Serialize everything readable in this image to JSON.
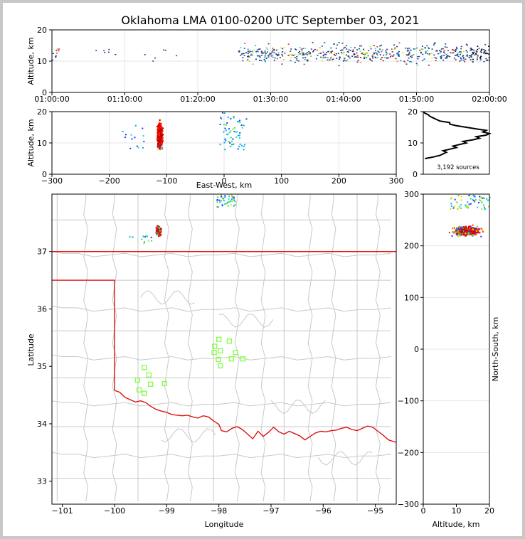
{
  "title": "Oklahoma LMA 0100-0200 UTC September 03, 2021",
  "colors": {
    "state_border": "#e01010",
    "county_lines": "#c8c8c8",
    "stations": "#80ff40",
    "altitude_profile": "#000000"
  },
  "chart_data": [
    {
      "name": "time-altitude",
      "type": "scatter",
      "ylabel": "Altitude, km",
      "ylim": [
        0,
        20
      ],
      "yticks": [
        "0",
        "10",
        "20"
      ],
      "xlim_minutes": [
        0,
        60
      ],
      "xticks": [
        "01:00:00",
        "01:10:00",
        "01:20:00",
        "01:30:00",
        "01:40:00",
        "01:50:00",
        "02:00:00"
      ],
      "source_clusters": [
        {
          "t_range": [
            0,
            1
          ],
          "alt_range": [
            6,
            16
          ],
          "n": 10
        },
        {
          "t_range": [
            5,
            9
          ],
          "alt_range": [
            9,
            18
          ],
          "n": 6
        },
        {
          "t_range": [
            12,
            17
          ],
          "alt_range": [
            10,
            16
          ],
          "n": 6
        },
        {
          "t_range": [
            25.5,
            60
          ],
          "alt_range": [
            5,
            20
          ],
          "n": 560
        }
      ]
    },
    {
      "name": "east-west-altitude",
      "type": "scatter",
      "xlabel": "East-West, km",
      "ylabel": "Altitude, km",
      "xlim": [
        -300,
        300
      ],
      "ylim": [
        0,
        20
      ],
      "xticks": [
        "−300",
        "−200",
        "−100",
        "0",
        "100",
        "200",
        "300"
      ],
      "yticks": [
        "0",
        "10",
        "20"
      ],
      "source_clusters": [
        {
          "x_range": [
            -132,
            -95
          ],
          "alt_range": [
            5.5,
            20
          ],
          "n": 650,
          "core": true
        },
        {
          "x_range": [
            -180,
            -140
          ],
          "alt_range": [
            6,
            18
          ],
          "n": 14
        },
        {
          "x_range": [
            -8,
            38
          ],
          "alt_range": [
            8,
            20
          ],
          "n": 60
        }
      ]
    },
    {
      "name": "altitude-histogram",
      "type": "line",
      "xlim": [
        0,
        20
      ],
      "ylim": [
        0,
        20
      ],
      "yticks": [
        "0",
        "10",
        "20"
      ],
      "annotation": "3,192 sources",
      "profile": [
        {
          "alt": 5.0,
          "count": 0.5
        },
        {
          "alt": 5.5,
          "count": 3
        },
        {
          "alt": 6.0,
          "count": 5
        },
        {
          "alt": 6.5,
          "count": 6
        },
        {
          "alt": 7.0,
          "count": 7
        },
        {
          "alt": 7.5,
          "count": 6
        },
        {
          "alt": 8.0,
          "count": 8
        },
        {
          "alt": 8.5,
          "count": 10
        },
        {
          "alt": 9.0,
          "count": 9
        },
        {
          "alt": 9.5,
          "count": 11
        },
        {
          "alt": 10.0,
          "count": 13
        },
        {
          "alt": 10.5,
          "count": 12
        },
        {
          "alt": 11.0,
          "count": 15
        },
        {
          "alt": 11.5,
          "count": 17
        },
        {
          "alt": 12.0,
          "count": 16
        },
        {
          "alt": 12.5,
          "count": 19
        },
        {
          "alt": 13.0,
          "count": 20
        },
        {
          "alt": 13.5,
          "count": 18
        },
        {
          "alt": 14.0,
          "count": 19
        },
        {
          "alt": 14.5,
          "count": 16
        },
        {
          "alt": 15.0,
          "count": 13
        },
        {
          "alt": 15.5,
          "count": 10
        },
        {
          "alt": 16.0,
          "count": 8
        },
        {
          "alt": 16.5,
          "count": 8
        },
        {
          "alt": 17.0,
          "count": 5
        },
        {
          "alt": 17.5,
          "count": 4
        },
        {
          "alt": 18.0,
          "count": 3
        },
        {
          "alt": 18.5,
          "count": 2
        },
        {
          "alt": 19.0,
          "count": 1.5
        },
        {
          "alt": 19.5,
          "count": 0.5
        },
        {
          "alt": 20.0,
          "count": 0
        }
      ]
    },
    {
      "name": "plan-view-map",
      "type": "scatter",
      "xlabel": "Longitude",
      "ylabel": "Latitude",
      "xlim": [
        -101.2,
        -94.6
      ],
      "ylim": [
        32.6,
        38.0
      ],
      "xticks": [
        {
          "value": -101,
          "label": "−101"
        },
        {
          "value": -100,
          "label": "−100"
        },
        {
          "value": -99,
          "label": "−99"
        },
        {
          "value": -98,
          "label": "−98"
        },
        {
          "value": -97,
          "label": "−97"
        },
        {
          "value": -96,
          "label": "−96"
        },
        {
          "value": -95,
          "label": "−95"
        }
      ],
      "yticks": [
        {
          "value": 33,
          "label": "33"
        },
        {
          "value": 34,
          "label": "34"
        },
        {
          "value": 35,
          "label": "35"
        },
        {
          "value": 36,
          "label": "36"
        },
        {
          "value": 37,
          "label": "37"
        }
      ],
      "source_clusters": [
        {
          "lon_range": [
            -99.3,
            -99.05
          ],
          "lat_range": [
            37.2,
            37.55
          ],
          "n": 280,
          "core": true
        },
        {
          "lon_range": [
            -99.72,
            -99.3
          ],
          "lat_range": [
            37.15,
            37.3
          ],
          "n": 12
        },
        {
          "lon_range": [
            -98.05,
            -97.7
          ],
          "lat_range": [
            37.78,
            38.0
          ],
          "n": 45
        }
      ],
      "stations": [
        {
          "lon": -98.0,
          "lat": 35.47
        },
        {
          "lon": -97.8,
          "lat": 35.44
        },
        {
          "lon": -98.08,
          "lat": 35.35
        },
        {
          "lon": -97.97,
          "lat": 35.27
        },
        {
          "lon": -98.09,
          "lat": 35.24
        },
        {
          "lon": -97.68,
          "lat": 35.24
        },
        {
          "lon": -98.01,
          "lat": 35.12
        },
        {
          "lon": -97.76,
          "lat": 35.13
        },
        {
          "lon": -97.54,
          "lat": 35.13
        },
        {
          "lon": -97.97,
          "lat": 35.01
        },
        {
          "lon": -99.43,
          "lat": 34.98
        },
        {
          "lon": -99.34,
          "lat": 34.85
        },
        {
          "lon": -99.56,
          "lat": 34.76
        },
        {
          "lon": -99.31,
          "lat": 34.69
        },
        {
          "lon": -99.04,
          "lat": 34.7
        },
        {
          "lon": -99.53,
          "lat": 34.59
        },
        {
          "lon": -99.43,
          "lat": 34.53
        }
      ]
    },
    {
      "name": "altitude-north-south",
      "type": "scatter",
      "xlabel": "Altitude, km",
      "ylabel": "North-South, km",
      "xlim": [
        0,
        20
      ],
      "ylim": [
        -300,
        300
      ],
      "xticks": [
        "0",
        "10",
        "20"
      ],
      "yticks": [
        "−300",
        "−200",
        "−100",
        "0",
        "100",
        "200",
        "300"
      ],
      "source_clusters": [
        {
          "alt_range": [
            5.5,
            20
          ],
          "ns_range": [
            210,
            250
          ],
          "n": 650,
          "core": true
        },
        {
          "alt_range": [
            8,
            20
          ],
          "ns_range": [
            272,
            300
          ],
          "n": 60
        }
      ]
    }
  ]
}
